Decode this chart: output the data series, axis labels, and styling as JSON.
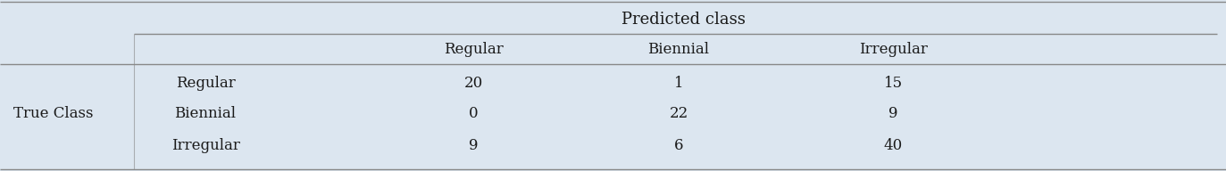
{
  "bg_color": "#dce6f0",
  "line_color": "#888888",
  "text_color": "#1a1a1a",
  "predicted_class_label": "Predicted class",
  "true_class_label": "True Class",
  "col_headers": [
    "Regular",
    "Biennial",
    "Irregular"
  ],
  "row_headers": [
    "Regular",
    "Biennial",
    "Irregular"
  ],
  "data": [
    [
      "20",
      "1",
      "15"
    ],
    [
      "0",
      "22",
      "9"
    ],
    [
      "9",
      "6",
      "40"
    ]
  ],
  "font_size": 12,
  "font_family": "serif"
}
